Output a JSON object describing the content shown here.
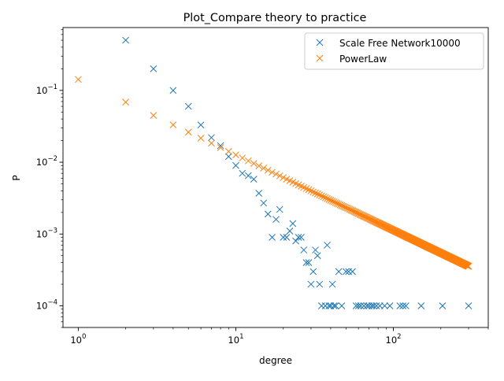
{
  "chart_data": {
    "type": "scatter",
    "title": "Plot_Compare theory to practice",
    "xlabel": "degree",
    "ylabel": "P",
    "xscale": "log",
    "yscale": "log",
    "xlim": [
      0.8,
      400
    ],
    "ylim": [
      5e-05,
      0.75
    ],
    "grid": false,
    "legend_position": "top-right",
    "x_ticks": [
      {
        "value": 1,
        "base": "10",
        "exp": "0"
      },
      {
        "value": 10,
        "base": "10",
        "exp": "1"
      },
      {
        "value": 100,
        "base": "10",
        "exp": "2"
      }
    ],
    "y_ticks": [
      {
        "value": 0.0001,
        "base": "10",
        "exp": "−4"
      },
      {
        "value": 0.001,
        "base": "10",
        "exp": "−3"
      },
      {
        "value": 0.01,
        "base": "10",
        "exp": "−2"
      },
      {
        "value": 0.1,
        "base": "10",
        "exp": "−1"
      }
    ],
    "series": [
      {
        "name": "Scale Free Network10000",
        "color": "#1f77b4",
        "marker": "x",
        "x": [
          2,
          3,
          4,
          5,
          6,
          7,
          8,
          9,
          10,
          11,
          12,
          13,
          14,
          15,
          16,
          17,
          18,
          19,
          20,
          21,
          22,
          23,
          24,
          25,
          26,
          27,
          28,
          29,
          30,
          31,
          32,
          33,
          34,
          35,
          38,
          37,
          39,
          40,
          41,
          42,
          43,
          45,
          47,
          50,
          52,
          55,
          58,
          60,
          62,
          65,
          68,
          70,
          73,
          75,
          78,
          82,
          88,
          95,
          110,
          115,
          120,
          150,
          205,
          300
        ],
        "y": [
          0.5,
          0.2,
          0.1,
          0.06,
          0.033,
          0.022,
          0.017,
          0.012,
          0.009,
          0.007,
          0.0065,
          0.0058,
          0.0037,
          0.0027,
          0.0019,
          0.0009,
          0.0016,
          0.0022,
          0.0009,
          0.0009,
          0.0011,
          0.0014,
          0.0008,
          0.0009,
          0.0009,
          0.0006,
          0.0004,
          0.0004,
          0.0002,
          0.0003,
          0.0006,
          0.0005,
          0.0002,
          0.0001,
          0.0007,
          0.0001,
          0.0001,
          0.0001,
          0.0002,
          0.0001,
          0.0001,
          0.0003,
          0.0001,
          0.0003,
          0.0003,
          0.0003,
          0.0001,
          0.0001,
          0.0001,
          0.0001,
          0.0001,
          0.0001,
          0.0001,
          0.0001,
          0.0001,
          0.0001,
          0.0001,
          0.0001,
          0.0001,
          0.0001,
          0.0001,
          0.0001,
          0.0001,
          0.0001
        ]
      },
      {
        "name": "PowerLaw",
        "color": "#ff7f0e",
        "marker": "x",
        "function": "P = 0.142 * degree^-1.05",
        "x_range": [
          1,
          300
        ],
        "amplitude": 0.142,
        "exponent": -1.05
      }
    ]
  }
}
